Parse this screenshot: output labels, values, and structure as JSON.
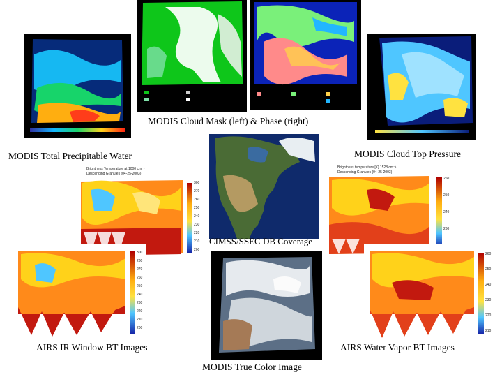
{
  "captions": {
    "cloud_mask_phase": "MODIS Cloud Mask (left) & Phase (right)",
    "total_precipitable_water": "MODIS Total Precipitable Water",
    "cloud_top_pressure": "MODIS Cloud Top Pressure",
    "db_coverage": "CIMSS/SSEC DB Coverage",
    "airs_ir_window": "AIRS IR Window BT Images",
    "airs_water_vapor": "AIRS Water Vapor BT Images",
    "true_color": "MODIS True Color Image"
  },
  "panel_titles": {
    "brightness_temp_top": "Brightness Temperature at 1000 cm⁻¹",
    "brightness_temp_top_sub": "Descending Granules (04-25-2003)",
    "wv_top": "Brightness temperature [K] 1528 cm⁻¹",
    "wv_top_sub": "Descending Granules (04-25-2003)"
  },
  "colorbars": {
    "ir_top": [
      "300",
      "270",
      "260",
      "250",
      "240",
      "230",
      "220",
      "210",
      "200"
    ],
    "ir_bottom": [
      "300",
      "280",
      "270",
      "260",
      "250",
      "240",
      "230",
      "220",
      "210",
      "200"
    ],
    "wv_top": [
      "260",
      "250",
      "240",
      "230",
      "220"
    ],
    "wv_bottom": [
      "260",
      "250",
      "240",
      "230",
      "220",
      "210"
    ]
  }
}
